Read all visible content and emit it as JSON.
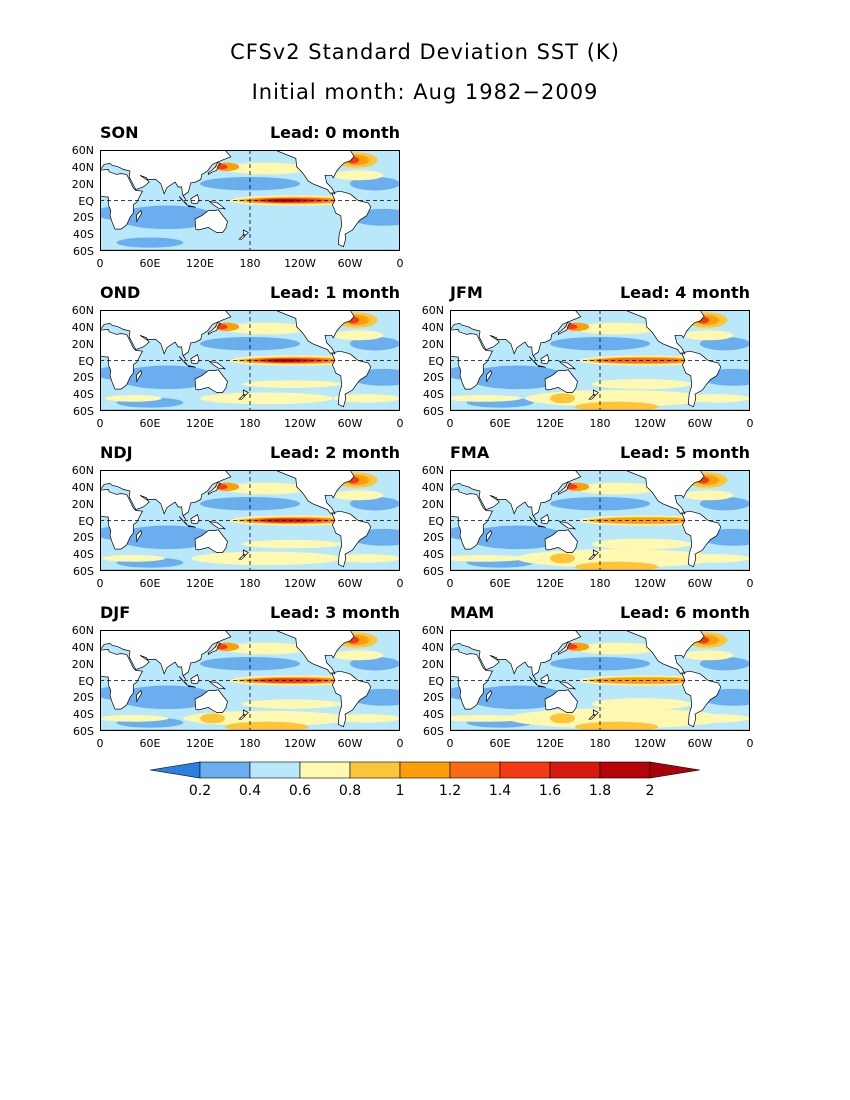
{
  "title": "CFSv2 Standard Deviation SST (K)",
  "subtitle": "Initial month: Aug 1982−2009",
  "lat_labels": [
    "60N",
    "40N",
    "20N",
    "EQ",
    "20S",
    "40S",
    "60S"
  ],
  "lon_labels": [
    "0",
    "60E",
    "120E",
    "180",
    "120W",
    "60W",
    "0"
  ],
  "panels": [
    {
      "season": "SON",
      "lead": "Lead: 0 month",
      "lead_months": 0
    },
    {
      "season": "OND",
      "lead": "Lead: 1 month",
      "lead_months": 1
    },
    {
      "season": "NDJ",
      "lead": "Lead: 2 month",
      "lead_months": 2
    },
    {
      "season": "DJF",
      "lead": "Lead: 3 month",
      "lead_months": 3
    },
    {
      "season": "JFM",
      "lead": "Lead: 4 month",
      "lead_months": 4
    },
    {
      "season": "FMA",
      "lead": "Lead: 5 month",
      "lead_months": 5
    },
    {
      "season": "MAM",
      "lead": "Lead: 6 month",
      "lead_months": 6
    }
  ],
  "colorbar": {
    "labels": [
      "0.2",
      "0.4",
      "0.6",
      "0.8",
      "1",
      "1.2",
      "1.4",
      "1.6",
      "1.8",
      "2"
    ],
    "colors": [
      "#2a7fe0",
      "#6aaef0",
      "#b8e8fa",
      "#fff8b0",
      "#fcc53a",
      "#fc9e0a",
      "#fa6a10",
      "#f43a12",
      "#d81a0e",
      "#b4040a",
      "#a80308"
    ]
  },
  "land_color": "#ffffff"
}
